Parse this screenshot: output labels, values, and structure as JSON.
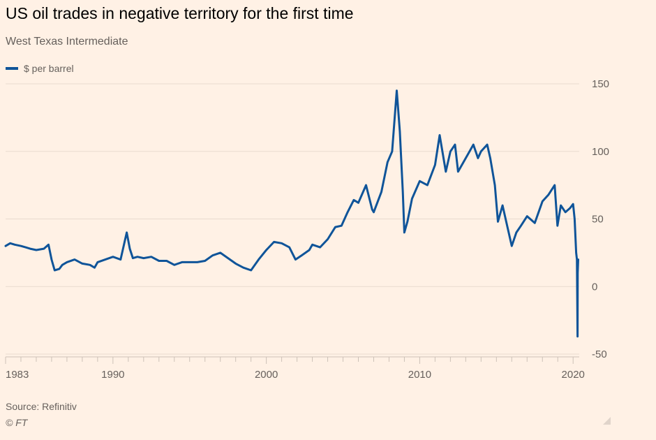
{
  "header": {
    "title": "US oil trades in negative territory for the first time",
    "subtitle": "West Texas Intermediate",
    "legend_label": "$ per barrel"
  },
  "footer": {
    "source": "Source: Refinitiv",
    "copyright": "© FT"
  },
  "colors": {
    "background": "#fff1e5",
    "line": "#0f5499",
    "grid": "#e9dbcf",
    "axis_text": "#66605c"
  },
  "chart_data": {
    "type": "line",
    "title": "US oil trades in negative territory for the first time",
    "subtitle": "West Texas Intermediate",
    "xlabel": "",
    "ylabel": "",
    "xlim": [
      1983,
      2020.4
    ],
    "ylim": [
      -50,
      150
    ],
    "x_ticks": [
      1983,
      1990,
      2000,
      2010,
      2020
    ],
    "x_tick_labels": [
      "1983",
      "1990",
      "2000",
      "2010",
      "2020"
    ],
    "y_ticks": [
      150,
      100,
      50,
      0,
      -50
    ],
    "y_tick_labels": [
      "150",
      "100",
      "50",
      "0",
      "-50"
    ],
    "grid": true,
    "y_axis_position": "right",
    "legend_position": "top-left",
    "series": [
      {
        "name": "$ per barrel",
        "x": [
          1983.0,
          1983.3,
          1983.6,
          1984.0,
          1984.3,
          1984.6,
          1985.0,
          1985.5,
          1985.8,
          1986.0,
          1986.2,
          1986.5,
          1986.7,
          1987.0,
          1987.5,
          1988.0,
          1988.5,
          1988.8,
          1989.0,
          1989.5,
          1990.0,
          1990.5,
          1990.8,
          1990.9,
          1991.1,
          1991.3,
          1991.6,
          1992.0,
          1992.5,
          1993.0,
          1993.5,
          1994.0,
          1994.5,
          1995.0,
          1995.5,
          1996.0,
          1996.5,
          1997.0,
          1997.5,
          1998.0,
          1998.5,
          1999.0,
          1999.5,
          2000.0,
          2000.5,
          2001.0,
          2001.5,
          2001.9,
          2002.3,
          2002.8,
          2003.0,
          2003.5,
          2004.0,
          2004.5,
          2004.9,
          2005.3,
          2005.7,
          2006.0,
          2006.5,
          2006.9,
          2007.0,
          2007.5,
          2007.9,
          2008.2,
          2008.5,
          2008.7,
          2008.9,
          2009.0,
          2009.2,
          2009.5,
          2010.0,
          2010.5,
          2011.0,
          2011.3,
          2011.7,
          2012.0,
          2012.3,
          2012.5,
          2013.0,
          2013.5,
          2013.8,
          2014.0,
          2014.4,
          2014.6,
          2014.9,
          2015.1,
          2015.4,
          2015.7,
          2016.0,
          2016.3,
          2016.6,
          2017.0,
          2017.5,
          2018.0,
          2018.4,
          2018.8,
          2018.98,
          2019.2,
          2019.5,
          2019.8,
          2020.0,
          2020.1,
          2020.2,
          2020.25,
          2020.29,
          2020.3,
          2020.33
        ],
        "values": [
          30,
          32,
          31,
          30,
          29,
          28,
          27,
          28,
          31,
          20,
          12,
          13,
          16,
          18,
          20,
          17,
          16,
          14,
          18,
          20,
          22,
          20,
          35,
          40,
          28,
          21,
          22,
          21,
          22,
          19,
          19,
          16,
          18,
          18,
          18,
          19,
          23,
          25,
          21,
          17,
          14,
          12,
          20,
          27,
          33,
          32,
          29,
          20,
          23,
          27,
          31,
          29,
          35,
          44,
          45,
          55,
          64,
          62,
          75,
          57,
          55,
          70,
          92,
          100,
          145,
          115,
          70,
          40,
          48,
          65,
          78,
          75,
          90,
          112,
          85,
          100,
          105,
          85,
          95,
          105,
          95,
          100,
          105,
          95,
          75,
          48,
          60,
          45,
          30,
          40,
          45,
          52,
          47,
          63,
          68,
          75,
          45,
          60,
          55,
          58,
          61,
          50,
          25,
          20,
          -37,
          10,
          20
        ]
      }
    ]
  }
}
